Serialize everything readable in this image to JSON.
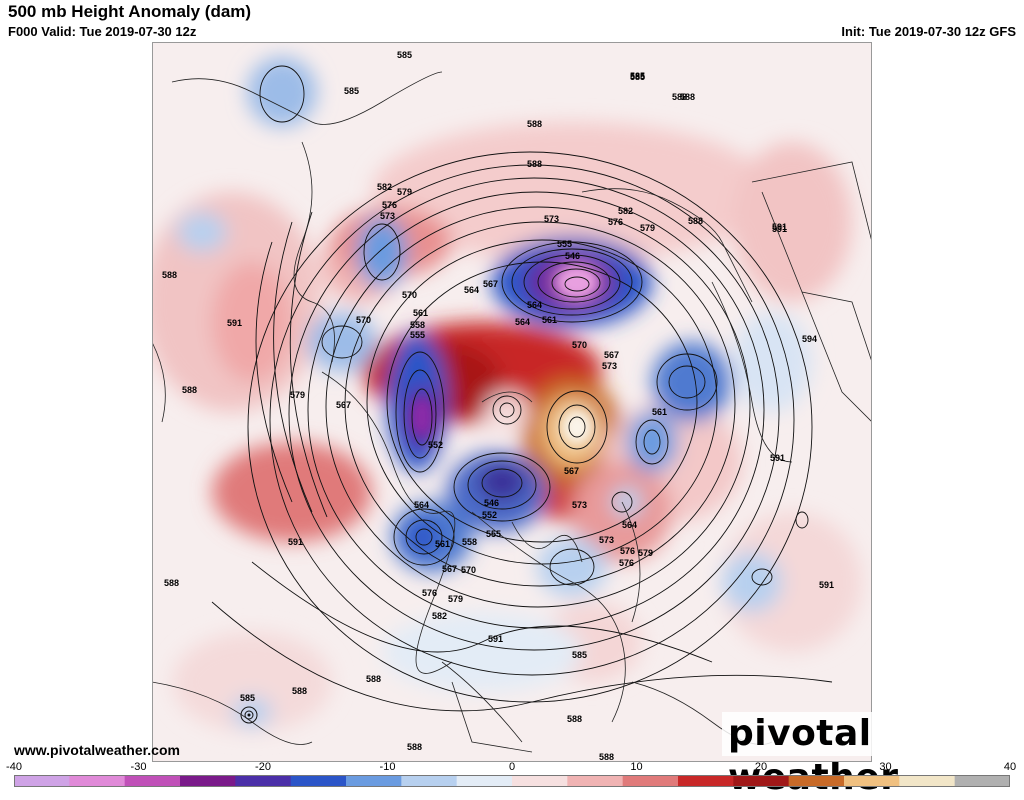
{
  "header": {
    "title": "500 mb Height Anomaly (dam)",
    "valid": "F000 Valid: Tue 2019-07-30 12z",
    "init": "Init: Tue 2019-07-30 12z GFS"
  },
  "footer": {
    "website": "www.pivotalweather.com",
    "logo_text": "pivotal weather"
  },
  "colorbar": {
    "min": -40,
    "max": 40,
    "ticks": [
      "-40",
      "-30",
      "-20",
      "-10",
      "0",
      "10",
      "20",
      "30",
      "40"
    ],
    "colors_negative": [
      "#cfa3e6",
      "#e08ad8",
      "#c050b8",
      "#7a1a8a",
      "#4b2fa8",
      "#2b55c8",
      "#6a9be0",
      "#b7d0ef",
      "#e3ecf6"
    ],
    "colors_positive": [
      "#f6e0e0",
      "#f0b3b3",
      "#e07a7a",
      "#c82828",
      "#a01818",
      "#c86a28",
      "#f0c080",
      "#f2e6c8",
      "#b0b0b0"
    ]
  },
  "map": {
    "contour_labels": [
      "585",
      "585",
      "585",
      "588",
      "588",
      "588",
      "582",
      "579",
      "576",
      "573",
      "582",
      "576",
      "579",
      "573",
      "555",
      "546",
      "564",
      "567",
      "570",
      "570",
      "561",
      "564",
      "564",
      "588",
      "591",
      "591",
      "588",
      "588",
      "594",
      "570",
      "567",
      "573",
      "555",
      "558",
      "561",
      "579",
      "567",
      "552",
      "561",
      "591",
      "564",
      "546",
      "552",
      "558",
      "555",
      "561",
      "567",
      "570",
      "573",
      "576",
      "564",
      "567",
      "573",
      "576",
      "579",
      "591",
      "588",
      "591",
      "582",
      "579",
      "576",
      "585",
      "591",
      "588",
      "588",
      "585",
      "588",
      "588",
      "588",
      "591",
      "588",
      "585"
    ]
  }
}
